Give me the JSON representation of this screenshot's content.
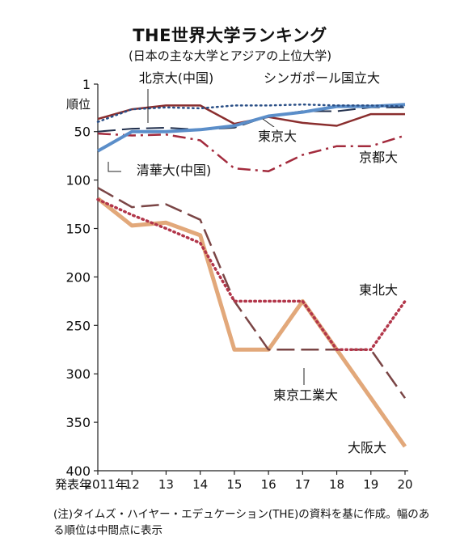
{
  "chart_data": {
    "type": "line",
    "title": "THE世界大学ランキング",
    "subtitle": "(日本の主な大学とアジアの上位大学)",
    "ylabel": "順位",
    "xlabel": "発表年",
    "y_inverted": true,
    "ylim": [
      1,
      400
    ],
    "y_ticks": [
      1,
      50,
      100,
      150,
      200,
      250,
      300,
      350,
      400
    ],
    "x": [
      2011,
      2012,
      2013,
      2014,
      2015,
      2016,
      2017,
      2018,
      2019,
      2020
    ],
    "x_tick_labels": [
      "2011年",
      "12",
      "13",
      "14",
      "15",
      "16",
      "17",
      "18",
      "19",
      "20"
    ],
    "grid": false,
    "series": [
      {
        "name": "北京大(中国)",
        "style": "solid",
        "color": "#8a2e2e",
        "width": 2.5,
        "values": [
          37,
          27,
          23,
          23,
          42,
          35,
          41,
          44,
          32,
          32
        ]
      },
      {
        "name": "シンガポール国立大",
        "style": "dotted",
        "color": "#2a4f86",
        "width": 2.5,
        "values": [
          40,
          27,
          25,
          26,
          23,
          23,
          22,
          23,
          23,
          24
        ]
      },
      {
        "name": "東京大",
        "style": "dashed",
        "color": "#22304d",
        "width": 2,
        "values": [
          50,
          47,
          46,
          48,
          46,
          34,
          29,
          29,
          25,
          25
        ]
      },
      {
        "name": "清華大(中国)",
        "style": "solid",
        "color": "#5b8ec9",
        "width": 4,
        "values": [
          70,
          50,
          50,
          48,
          44,
          34,
          30,
          24,
          24,
          22
        ]
      },
      {
        "name": "京都大",
        "style": "dashdot",
        "color": "#a32b3d",
        "width": 2.5,
        "values": [
          52,
          54,
          53,
          59,
          88,
          91,
          74,
          65,
          65,
          54
        ]
      },
      {
        "name": "東北大",
        "style": "dotted",
        "color": "#b2364a",
        "width": 3.5,
        "values": [
          120,
          136,
          150,
          165,
          225,
          225,
          225,
          275,
          275,
          225
        ]
      },
      {
        "name": "東京工業大",
        "style": "dashed",
        "color": "#7a4545",
        "width": 2.5,
        "values": [
          108,
          128,
          125,
          141,
          225,
          275,
          275,
          275,
          275,
          325
        ]
      },
      {
        "name": "大阪大",
        "style": "solid",
        "color": "#e2a87a",
        "width": 5,
        "values": [
          119,
          147,
          144,
          157,
          275,
          275,
          225,
          275,
          325,
          375
        ]
      }
    ],
    "annotations": [
      {
        "text": "北京大(中国)",
        "target": "北京大(中国)"
      },
      {
        "text": "シンガポール国立大",
        "target": "シンガポール国立大"
      },
      {
        "text": "東京大",
        "target": "東京大"
      },
      {
        "text": "清華大(中国)",
        "target": "清華大(中国)"
      },
      {
        "text": "京都大",
        "target": "京都大"
      },
      {
        "text": "東北大",
        "target": "東北大"
      },
      {
        "text": "東京工業大",
        "target": "東京工業大"
      },
      {
        "text": "大阪大",
        "target": "大阪大"
      }
    ],
    "footnote": "(注)タイムズ・ハイヤー・エデュケーション(THE)の資料を基に作成。幅のある順位は中間点に表示"
  }
}
